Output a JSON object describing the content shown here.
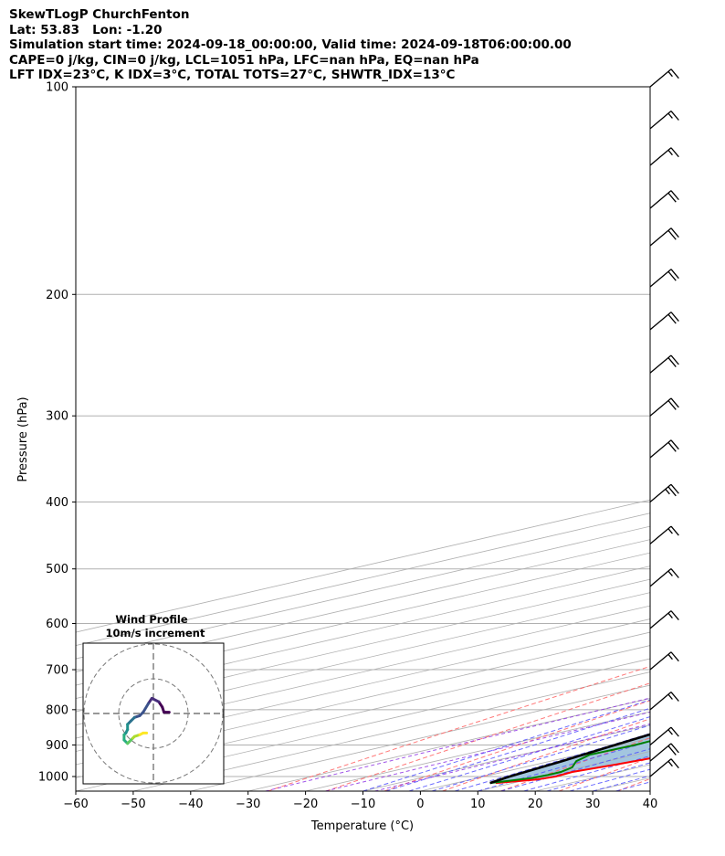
{
  "header": {
    "line1": "SkewTLogP ChurchFenton",
    "line2": "Lat: 53.83   Lon: -1.20",
    "line3": "Simulation start time: 2024-09-18_00:00:00, Valid time: 2024-09-18T06:00:00.00",
    "line4": "CAPE=0 j/kg, CIN=0 j/kg, LCL=1051 hPa, LFC=nan hPa, EQ=nan hPa",
    "line5": "LFT IDX=23°C, K IDX=3°C, TOTAL TOTS=27°C, SHWTR_IDX=13°C"
  },
  "chart_data": {
    "type": "line",
    "subtype": "skew-t log-p",
    "xlabel": "Temperature (°C)",
    "ylabel": "Pressure (hPa)",
    "xlim": [
      -60,
      40
    ],
    "ylim": [
      1050,
      100
    ],
    "y_scale": "log",
    "x_ticks": [
      "−60",
      "−50",
      "−40",
      "−30",
      "−20",
      "−10",
      "0",
      "10",
      "20",
      "30",
      "40"
    ],
    "y_ticks": [
      "100",
      "200",
      "300",
      "400",
      "500",
      "600",
      "700",
      "800",
      "900",
      "1000"
    ],
    "grid": true,
    "colors": {
      "temperature": "#ff0000",
      "dewpoint": "#008000",
      "parcel": "#000000",
      "shade": "#a3c6df",
      "dry_adiabat": "#ff6060",
      "moist_adiabat": "#5050ff",
      "mixing_ratio": "#8a2be2",
      "isotherm": "#b0b0b0"
    },
    "series": [
      {
        "p": [
          1022,
          1010,
          1000,
          985,
          960,
          930,
          900,
          870,
          840,
          800,
          750,
          700,
          650,
          600,
          550,
          500,
          450,
          400,
          350,
          300,
          260,
          230,
          200,
          180,
          170,
          160,
          140,
          120,
          100
        ],
        "t": [
          7,
          11.5,
          12.5,
          12,
          14,
          16,
          16.5,
          17,
          17.5,
          17,
          16,
          14.5,
          12.5,
          10,
          6.5,
          2.5,
          -1.5,
          -5.5,
          -10,
          -15,
          -20,
          -25,
          -30,
          -35,
          -38,
          -38,
          -37,
          -35,
          -30
        ]
      },
      {
        "p": [
          1022,
          1015,
          1005,
          995,
          985,
          970,
          950,
          930,
          900,
          880,
          860,
          830,
          800,
          780,
          760,
          730,
          700,
          650,
          600,
          550,
          500,
          450,
          400,
          350,
          320,
          300,
          280,
          260,
          230,
          200,
          180,
          170,
          160,
          140,
          120,
          100
        ],
        "t": [
          6,
          7.5,
          9.5,
          10,
          10,
          8.5,
          4.5,
          2,
          2.5,
          2,
          0.5,
          -6,
          -10,
          -9.5,
          -4,
          0,
          0.5,
          -3,
          -7,
          -11,
          -16,
          -20,
          -25,
          -30,
          -35,
          -37,
          -37.5,
          -39,
          -43,
          -49,
          -55,
          -58,
          -61,
          -63,
          -65,
          -67
        ]
      },
      {
        "p": [
          1022,
          1000,
          950,
          900,
          850,
          800,
          750,
          700,
          650,
          600,
          550,
          500,
          450,
          400,
          350,
          300,
          250,
          200,
          150,
          120,
          100
        ],
        "t": [
          6,
          4.5,
          2,
          -1,
          -4,
          -7.5,
          -11.5,
          -15.5,
          -20,
          -25,
          -30.5,
          -36.5,
          -43,
          -50.5,
          -58.5,
          -67.5,
          -77.5,
          -89.5,
          -105,
          -117,
          -127
        ]
      }
    ],
    "wind_barbs": {
      "p": [
        100,
        115,
        130,
        150,
        170,
        195,
        225,
        260,
        300,
        345,
        400,
        460,
        530,
        610,
        700,
        800,
        900,
        950,
        1000
      ],
      "speed_kt": [
        15,
        15,
        15,
        20,
        20,
        20,
        20,
        20,
        20,
        20,
        25,
        15,
        15,
        15,
        15,
        15,
        15,
        20,
        15
      ]
    },
    "wind_profile": {
      "title": "Wind Profile",
      "subtitle": "10m/s increment",
      "u": [
        8.5,
        7,
        6.5,
        5.5,
        3.5,
        2.5,
        1,
        0,
        -1.5,
        -2.5,
        -3.5,
        -3.5,
        -4,
        -4.5,
        -4.5,
        -3.5,
        -3,
        -2.5,
        -2,
        -1.5,
        0,
        1,
        2
      ],
      "v": [
        3,
        3,
        4.5,
        6,
        7,
        5.5,
        3,
        2,
        1.5,
        0.5,
        -0.5,
        -2,
        -3,
        -3.5,
        -5,
        -6,
        -5.5,
        -5,
        -4.5,
        -4,
        -3.5,
        -3,
        -3
      ]
    }
  }
}
